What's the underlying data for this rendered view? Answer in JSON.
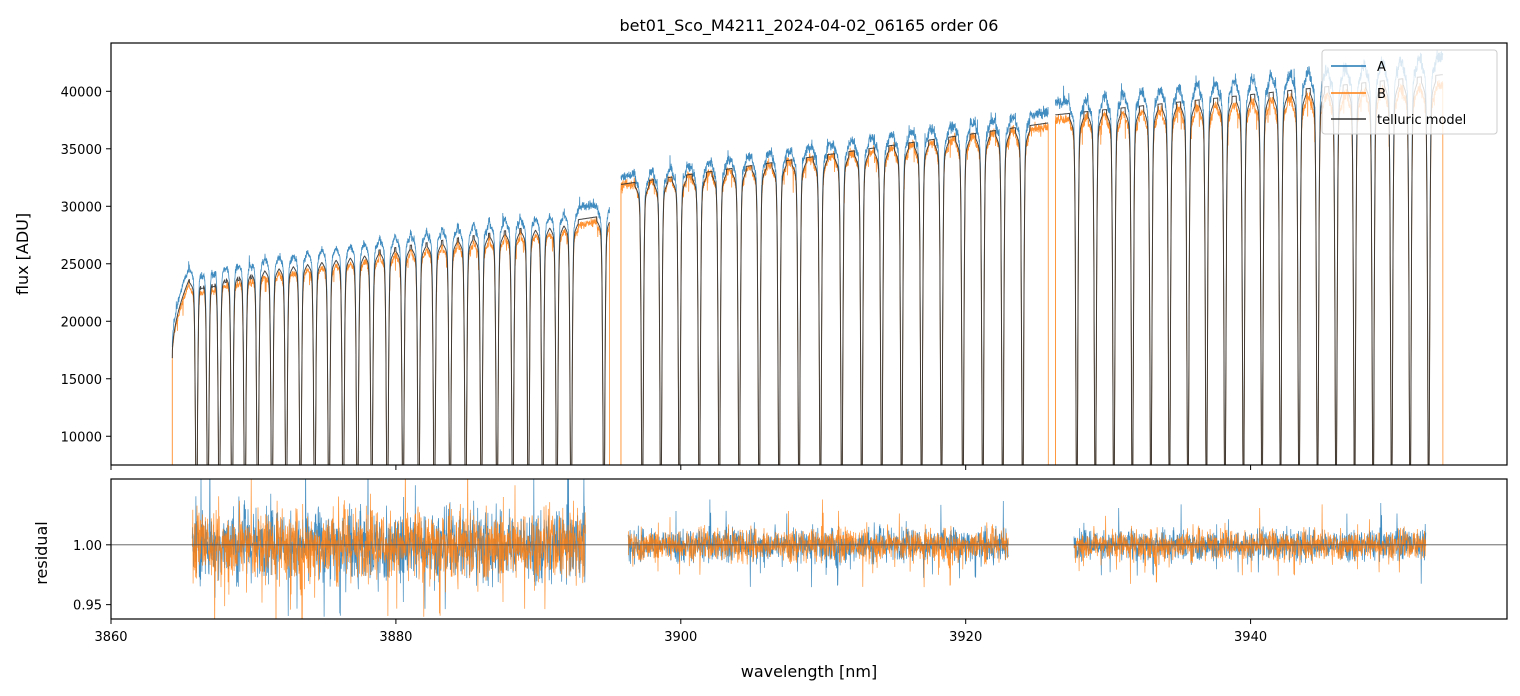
{
  "chart_data": [
    {
      "type": "line",
      "title": "bet01_Sco_M4211_2024-04-02_06165  order 06",
      "xlabel": "",
      "ylabel": "flux [ADU]",
      "xlim": [
        3860,
        3958
      ],
      "ylim": [
        7500,
        44200
      ],
      "x_ticks": [
        3860,
        3880,
        3900,
        3920,
        3940
      ],
      "y_ticks": [
        10000,
        15000,
        20000,
        25000,
        30000,
        35000,
        40000
      ],
      "y_tick_labels": [
        "10000",
        "15000",
        "20000",
        "25000",
        "30000",
        "35000",
        "40000"
      ],
      "legend_position": "top-right",
      "segments": [
        {
          "x_start": 3864.3,
          "x_end": 3895.0,
          "continuum_A": [
            24500,
            30300
          ],
          "continuum_B": [
            23000,
            28800
          ]
        },
        {
          "x_start": 3895.8,
          "x_end": 3925.8,
          "continuum_A": [
            32600,
            38200
          ],
          "continuum_B": [
            31800,
            36900
          ]
        },
        {
          "x_start": 3926.3,
          "x_end": 3953.5,
          "continuum_A": [
            39000,
            43000
          ],
          "continuum_B": [
            37500,
            40500
          ]
        }
      ],
      "absorption_lines_nm": [
        3866.0,
        3866.8,
        3867.6,
        3868.5,
        3869.4,
        3870.3,
        3871.3,
        3872.3,
        3873.3,
        3874.3,
        3875.3,
        3876.3,
        3877.3,
        3878.3,
        3879.4,
        3880.5,
        3881.6,
        3882.7,
        3883.8,
        3884.9,
        3886.0,
        3887.1,
        3888.2,
        3889.3,
        3890.3,
        3891.3,
        3892.3,
        3894.6,
        3897.3,
        3898.6,
        3899.9,
        3901.3,
        3902.7,
        3904.1,
        3905.5,
        3906.9,
        3908.3,
        3909.8,
        3911.3,
        3912.7,
        3914.1,
        3915.5,
        3916.9,
        3918.3,
        3919.8,
        3921.2,
        3922.6,
        3924.0,
        3927.8,
        3929.1,
        3930.4,
        3931.7,
        3933.0,
        3934.3,
        3935.6,
        3936.9,
        3938.2,
        3939.5,
        3940.8,
        3942.1,
        3943.4,
        3944.7,
        3946.0,
        3947.3,
        3948.6,
        3949.9,
        3951.2,
        3952.5
      ],
      "series": [
        {
          "name": "A",
          "color": "#1f77b4"
        },
        {
          "name": "B",
          "color": "#ff7f0e"
        },
        {
          "name": "telluric model",
          "color": "#333333"
        }
      ]
    },
    {
      "type": "line",
      "xlabel": "wavelength [nm]",
      "ylabel": "residual",
      "xlim": [
        3860,
        3958
      ],
      "ylim": [
        0.938,
        1.055
      ],
      "x_ticks": [
        3860,
        3880,
        3900,
        3920,
        3940
      ],
      "x_tick_labels": [
        "3860",
        "3880",
        "3900",
        "3920",
        "3940"
      ],
      "y_ticks": [
        0.95,
        1.0
      ],
      "y_tick_labels": [
        "0.95",
        "1.00"
      ],
      "reference_line": 1.0,
      "segments": [
        {
          "x_start": 3865.7,
          "x_end": 3893.3,
          "scatter": 0.028
        },
        {
          "x_start": 3896.3,
          "x_end": 3923.0,
          "scatter": 0.013
        },
        {
          "x_start": 3927.6,
          "x_end": 3952.3,
          "scatter": 0.012
        }
      ],
      "series": [
        {
          "name": "A",
          "color": "#1f77b4"
        },
        {
          "name": "B",
          "color": "#ff7f0e"
        }
      ]
    }
  ]
}
